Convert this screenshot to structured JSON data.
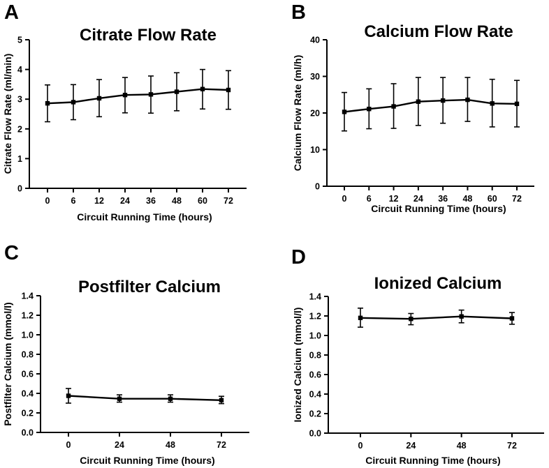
{
  "chart_data": [
    {
      "panel_label": "A",
      "type": "line",
      "title": "Citrate Flow Rate",
      "xlabel": "Circuit Running Time (hours)",
      "ylabel": "Citrate Flow Rate (ml/min)",
      "categories": [
        "0",
        "6",
        "12",
        "24",
        "36",
        "48",
        "60",
        "72"
      ],
      "values": [
        2.86,
        2.9,
        3.03,
        3.14,
        3.16,
        3.25,
        3.34,
        3.31
      ],
      "error_lower": [
        2.24,
        2.31,
        2.41,
        2.54,
        2.53,
        2.61,
        2.67,
        2.66
      ],
      "error_upper": [
        3.48,
        3.49,
        3.66,
        3.73,
        3.78,
        3.89,
        4.0,
        3.96
      ],
      "ylim": [
        0,
        5
      ],
      "yticks": [
        "0",
        "1",
        "2",
        "3",
        "4",
        "5"
      ],
      "grid": false,
      "color": "#000000"
    },
    {
      "panel_label": "B",
      "type": "line",
      "title": "Calcium Flow Rate",
      "xlabel": "Circuit Running Time (hours)",
      "ylabel": "Calcium  Flow Rate (ml/h)",
      "categories": [
        "0",
        "6",
        "12",
        "24",
        "36",
        "48",
        "60",
        "72"
      ],
      "values": [
        20.3,
        21.1,
        21.8,
        23.1,
        23.4,
        23.6,
        22.6,
        22.5
      ],
      "error_lower": [
        15.1,
        15.7,
        15.8,
        16.6,
        17.2,
        17.7,
        16.2,
        16.2
      ],
      "error_upper": [
        25.6,
        26.6,
        28.0,
        29.7,
        29.7,
        29.7,
        29.2,
        28.9
      ],
      "ylim": [
        0,
        40
      ],
      "yticks": [
        "0",
        "10",
        "20",
        "30",
        "40"
      ],
      "grid": false,
      "color": "#000000"
    },
    {
      "panel_label": "C",
      "type": "line",
      "title": "Postfilter Calcium",
      "xlabel": "Circuit Running Time (hours)",
      "ylabel": "Postfilter Calcium (mmol/l)",
      "categories": [
        "0",
        "24",
        "48",
        "72"
      ],
      "values": [
        0.375,
        0.345,
        0.345,
        0.33
      ],
      "error_lower": [
        0.3,
        0.31,
        0.31,
        0.295
      ],
      "error_upper": [
        0.45,
        0.385,
        0.385,
        0.37
      ],
      "ylim": [
        0,
        1.4
      ],
      "yticks": [
        "0.0",
        "0.2",
        "0.4",
        "0.6",
        "0.8",
        "1.0",
        "1.2",
        "1.4"
      ],
      "grid": false,
      "color": "#000000"
    },
    {
      "panel_label": "D",
      "type": "line",
      "title": "Ionized Calcium",
      "xlabel": "Circuit Running Time (hours)",
      "ylabel": "Ionized Calcium (mmol/l)",
      "categories": [
        "0",
        "24",
        "48",
        "72"
      ],
      "values": [
        1.18,
        1.17,
        1.195,
        1.175
      ],
      "error_lower": [
        1.085,
        1.11,
        1.13,
        1.115
      ],
      "error_upper": [
        1.28,
        1.225,
        1.26,
        1.235
      ],
      "ylim": [
        0,
        1.4
      ],
      "yticks": [
        "0.0",
        "0.2",
        "0.4",
        "0.6",
        "0.8",
        "1.0",
        "1.2",
        "1.4"
      ],
      "grid": false,
      "color": "#000000"
    }
  ]
}
